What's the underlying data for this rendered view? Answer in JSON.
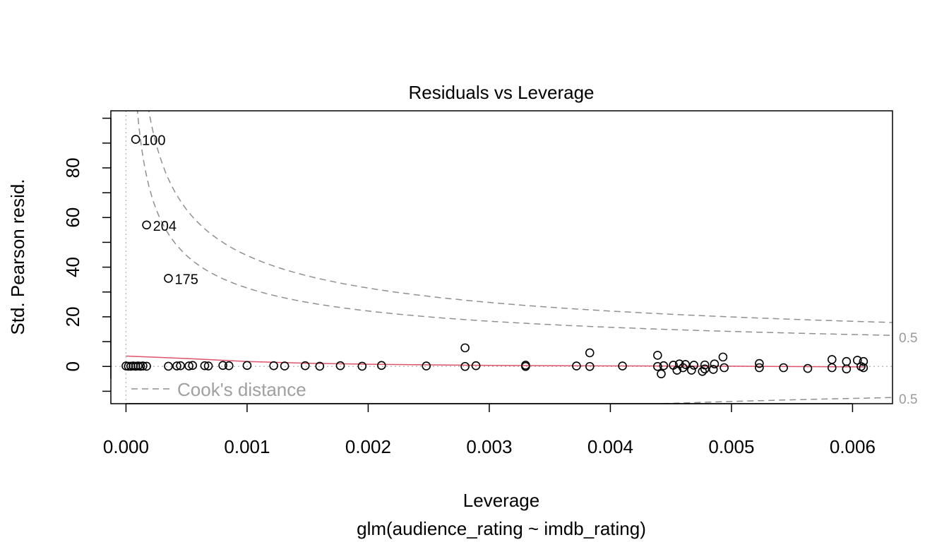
{
  "chart_data": {
    "type": "scatter",
    "title": "Residuals vs Leverage",
    "xlabel": "Leverage",
    "subtitle": "glm(audience_rating ~ imdb_rating)",
    "ylabel": "Std. Pearson resid.",
    "xlim": [
      -0.000125,
      0.00633
    ],
    "ylim": [
      -15,
      103
    ],
    "x_ticks": [
      0.0,
      0.001,
      0.002,
      0.003,
      0.004,
      0.005,
      0.006
    ],
    "x_tick_labels": [
      "0.000",
      "0.001",
      "0.002",
      "0.003",
      "0.004",
      "0.005",
      "0.006"
    ],
    "y_ticks": [
      0,
      20,
      40,
      60,
      80
    ],
    "y_tick_labels": [
      "0",
      "20",
      "40",
      "60",
      "80"
    ],
    "grid": false,
    "points": [
      {
        "x": 0.0,
        "y": 0.2
      },
      {
        "x": 2e-05,
        "y": 0.1
      },
      {
        "x": 4e-05,
        "y": 0.1
      },
      {
        "x": 6e-05,
        "y": 0.2
      },
      {
        "x": 8e-05,
        "y": 0.1
      },
      {
        "x": 0.0001,
        "y": 0.2
      },
      {
        "x": 0.00012,
        "y": 0.1
      },
      {
        "x": 0.00014,
        "y": 0.2
      },
      {
        "x": 0.00017,
        "y": 0.1
      },
      {
        "x": 0.00035,
        "y": 0.1
      },
      {
        "x": 0.00042,
        "y": 0.2
      },
      {
        "x": 0.00045,
        "y": 0.3
      },
      {
        "x": 0.00052,
        "y": 0.2
      },
      {
        "x": 0.00055,
        "y": 0.4
      },
      {
        "x": 0.00065,
        "y": 0.3
      },
      {
        "x": 0.00068,
        "y": 0.2
      },
      {
        "x": 0.0008,
        "y": 0.4
      },
      {
        "x": 0.00085,
        "y": 0.3
      },
      {
        "x": 0.001,
        "y": 0.4
      },
      {
        "x": 0.00122,
        "y": 0.3
      },
      {
        "x": 0.00131,
        "y": 0.2
      },
      {
        "x": 0.00148,
        "y": 0.3
      },
      {
        "x": 0.0016,
        "y": 0.1
      },
      {
        "x": 0.00177,
        "y": 0.3
      },
      {
        "x": 0.00195,
        "y": 0.1
      },
      {
        "x": 0.00211,
        "y": 0.4
      },
      {
        "x": 0.00248,
        "y": 0.2
      },
      {
        "x": 0.0028,
        "y": 7.5
      },
      {
        "x": 0.0028,
        "y": 0.0
      },
      {
        "x": 0.00289,
        "y": 0.3
      },
      {
        "x": 0.0033,
        "y": 0.0
      },
      {
        "x": 0.0033,
        "y": 0.5
      },
      {
        "x": 0.00372,
        "y": 0.2
      },
      {
        "x": 0.00383,
        "y": 5.5
      },
      {
        "x": 0.00383,
        "y": 0.0
      },
      {
        "x": 0.0041,
        "y": 0.2
      },
      {
        "x": 0.00439,
        "y": 4.5
      },
      {
        "x": 0.00439,
        "y": 0.0
      },
      {
        "x": 0.00442,
        "y": -3.0
      },
      {
        "x": 0.00444,
        "y": 0.3
      },
      {
        "x": 0.00452,
        "y": 0.5
      },
      {
        "x": 0.00455,
        "y": -1.5
      },
      {
        "x": 0.00457,
        "y": 1.0
      },
      {
        "x": 0.0046,
        "y": -0.5
      },
      {
        "x": 0.00462,
        "y": 0.8
      },
      {
        "x": 0.00467,
        "y": -1.5
      },
      {
        "x": 0.00469,
        "y": 0.5
      },
      {
        "x": 0.00476,
        "y": -2.0
      },
      {
        "x": 0.00478,
        "y": -1.0
      },
      {
        "x": 0.00478,
        "y": 0.6
      },
      {
        "x": 0.00485,
        "y": -1.2
      },
      {
        "x": 0.00486,
        "y": 1.0
      },
      {
        "x": 0.00493,
        "y": 3.8
      },
      {
        "x": 0.00494,
        "y": -0.5
      },
      {
        "x": 0.00523,
        "y": 1.2
      },
      {
        "x": 0.00523,
        "y": -0.5
      },
      {
        "x": 0.00543,
        "y": -0.5
      },
      {
        "x": 0.00563,
        "y": -0.8
      },
      {
        "x": 0.00583,
        "y": 2.8
      },
      {
        "x": 0.00583,
        "y": -0.5
      },
      {
        "x": 0.00595,
        "y": 2.0
      },
      {
        "x": 0.00595,
        "y": -1.0
      },
      {
        "x": 0.00604,
        "y": 2.5
      },
      {
        "x": 0.00607,
        "y": 0.0
      },
      {
        "x": 0.00609,
        "y": 2.0
      },
      {
        "x": 0.00609,
        "y": -0.5
      },
      {
        "x": 8e-05,
        "y": 91.5,
        "label": "100"
      },
      {
        "x": 0.00017,
        "y": 57.0,
        "label": "204"
      },
      {
        "x": 0.00035,
        "y": 35.5,
        "label": "175"
      }
    ],
    "smooth_line": [
      {
        "x": 0.0,
        "y": 4.2
      },
      {
        "x": 0.0005,
        "y": 3.2
      },
      {
        "x": 0.001,
        "y": 2.0
      },
      {
        "x": 0.0015,
        "y": 1.3
      },
      {
        "x": 0.002,
        "y": 0.9
      },
      {
        "x": 0.003,
        "y": 0.4
      },
      {
        "x": 0.004,
        "y": 0.2
      },
      {
        "x": 0.005,
        "y": 0.1
      },
      {
        "x": 0.0061,
        "y": -0.2
      }
    ],
    "cooks_levels": [
      0.5,
      1
    ],
    "cooks_contour_labels": [
      "0.5",
      "0.5"
    ],
    "legend": {
      "label": "Cook's distance",
      "position": "bottom-left"
    },
    "colors": {
      "points": "#000000",
      "smooth": "#DF536B",
      "cooks": "#909090",
      "reference": "#BEBEBE",
      "legend_text": "#A0A0A0",
      "contour_label": "#9A9A9A"
    }
  }
}
